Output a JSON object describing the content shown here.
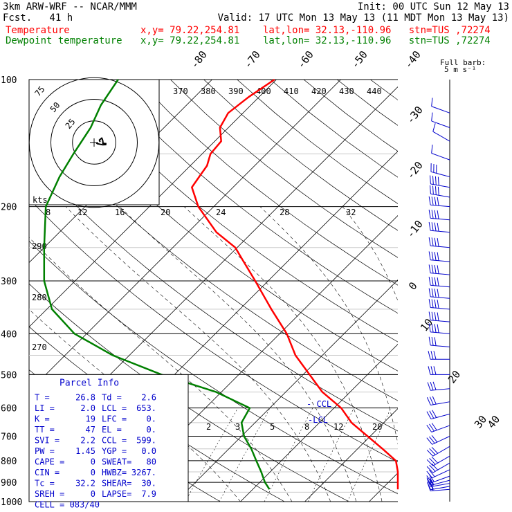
{
  "header": {
    "model": "3km ARW-WRF -- NCAR/MMM",
    "forecast": "Fcst.   41 h",
    "init": "Init: 00 UTC Sun 12 May 13",
    "valid": "Valid: 17 UTC Mon 13 May 13 (11 MDT Mon 13 May 13)",
    "temp_label": "Temperature",
    "dew_label": "Dewpoint temperature",
    "loc_info": "x,y= 79.22,254.81    lat,lon= 32.13,-110.96   stn=TUS ,72274"
  },
  "colors": {
    "temperature": "#ff0000",
    "dewpoint": "#008000",
    "parcel_panel": "#0000cc",
    "axes": "#000000"
  },
  "chart_data": {
    "type": "line",
    "title": "",
    "diagram": "Skew-T log-P",
    "ylabel": "",
    "pressure_levels": [
      100,
      200,
      300,
      400,
      500,
      600,
      700,
      800,
      900,
      1000
    ],
    "isotherm_labels": [
      "-80",
      "-70",
      "-60",
      "-50",
      "-40",
      "-30",
      "-20",
      "-10",
      "0",
      "10",
      "20",
      "30",
      "40"
    ],
    "theta_labels": [
      "370",
      "380",
      "390",
      "400",
      "410",
      "420",
      "430",
      "440"
    ],
    "mixing_ratio_labels": [
      "8",
      "12",
      "16",
      "20",
      "24",
      "28",
      "32"
    ],
    "mixing_ratio_low_labels": [
      "2",
      "3",
      "5",
      "8",
      "12",
      "20"
    ],
    "theta_e_labels": [
      "290",
      "280",
      "270"
    ],
    "lcl_label": "LCL",
    "ccl_label": "CCL",
    "series": [
      {
        "name": "Temperature",
        "points": [
          [
            935,
            30.8
          ],
          [
            900,
            26.4
          ],
          [
            850,
            21.6
          ],
          [
            800,
            17.8
          ],
          [
            750,
            13.9
          ],
          [
            700,
            9.6
          ],
          [
            650,
            5.0
          ],
          [
            600,
            1.1
          ],
          [
            550,
            -4.3
          ],
          [
            500,
            -9.0
          ],
          [
            450,
            -14.2
          ],
          [
            400,
            -18.9
          ],
          [
            350,
            -25.1
          ],
          [
            300,
            -32.0
          ],
          [
            270,
            -36.8
          ],
          [
            250,
            -40.3
          ],
          [
            230,
            -45.6
          ],
          [
            200,
            -52.4
          ],
          [
            180,
            -56.4
          ],
          [
            170,
            -56.9
          ],
          [
            160,
            -57.4
          ],
          [
            150,
            -58.7
          ],
          [
            140,
            -59.0
          ],
          [
            130,
            -61.3
          ],
          [
            120,
            -62.3
          ],
          [
            110,
            -61.6
          ],
          [
            100,
            -60.3
          ]
        ]
      },
      {
        "name": "Dewpoint temperature",
        "points": [
          [
            935,
            2.6
          ],
          [
            900,
            0.8
          ],
          [
            850,
            -1.4
          ],
          [
            800,
            -3.9
          ],
          [
            750,
            -6.5
          ],
          [
            700,
            -9.6
          ],
          [
            650,
            -12.1
          ],
          [
            600,
            -13.1
          ],
          [
            550,
            -20.8
          ],
          [
            500,
            -32.0
          ],
          [
            450,
            -42.6
          ],
          [
            400,
            -51.9
          ],
          [
            350,
            -59.2
          ],
          [
            300,
            -64.8
          ],
          [
            250,
            -70.0
          ],
          [
            200,
            -76.1
          ],
          [
            170,
            -78.6
          ],
          [
            150,
            -80.0
          ],
          [
            130,
            -81.4
          ],
          [
            115,
            -83.3
          ],
          [
            100,
            -84.6
          ]
        ]
      }
    ],
    "wind_barbs_label": "Full barb:",
    "wind_barbs_unit": "5 m s⁻¹",
    "wind_profile": [
      {
        "p": 120,
        "dir": 290,
        "spd": 5
      },
      {
        "p": 130,
        "dir": 290,
        "spd": 5
      },
      {
        "p": 140,
        "dir": 300,
        "spd": 5
      },
      {
        "p": 155,
        "dir": 290,
        "spd": 5
      },
      {
        "p": 170,
        "dir": 285,
        "spd": 15
      },
      {
        "p": 180,
        "dir": 280,
        "spd": 20
      },
      {
        "p": 190,
        "dir": 280,
        "spd": 20
      },
      {
        "p": 200,
        "dir": 275,
        "spd": 20
      },
      {
        "p": 215,
        "dir": 275,
        "spd": 20
      },
      {
        "p": 230,
        "dir": 275,
        "spd": 20
      },
      {
        "p": 250,
        "dir": 275,
        "spd": 20
      },
      {
        "p": 270,
        "dir": 275,
        "spd": 20
      },
      {
        "p": 290,
        "dir": 275,
        "spd": 20
      },
      {
        "p": 310,
        "dir": 275,
        "spd": 20
      },
      {
        "p": 330,
        "dir": 275,
        "spd": 20
      },
      {
        "p": 350,
        "dir": 275,
        "spd": 20
      },
      {
        "p": 375,
        "dir": 275,
        "spd": 20
      },
      {
        "p": 400,
        "dir": 275,
        "spd": 20
      },
      {
        "p": 430,
        "dir": 275,
        "spd": 15
      },
      {
        "p": 460,
        "dir": 270,
        "spd": 15
      },
      {
        "p": 500,
        "dir": 270,
        "spd": 15
      },
      {
        "p": 540,
        "dir": 265,
        "spd": 15
      },
      {
        "p": 580,
        "dir": 260,
        "spd": 15
      },
      {
        "p": 620,
        "dir": 255,
        "spd": 15
      },
      {
        "p": 660,
        "dir": 250,
        "spd": 15
      },
      {
        "p": 700,
        "dir": 245,
        "spd": 15
      },
      {
        "p": 740,
        "dir": 240,
        "spd": 15
      },
      {
        "p": 780,
        "dir": 240,
        "spd": 15
      },
      {
        "p": 810,
        "dir": 240,
        "spd": 15
      },
      {
        "p": 840,
        "dir": 245,
        "spd": 10
      },
      {
        "p": 870,
        "dir": 250,
        "spd": 10
      },
      {
        "p": 890,
        "dir": 255,
        "spd": 10
      },
      {
        "p": 905,
        "dir": 260,
        "spd": 10
      },
      {
        "p": 920,
        "dir": 260,
        "spd": 10
      },
      {
        "p": 935,
        "dir": 265,
        "spd": 10
      }
    ],
    "hodograph": {
      "unit_label": "kts",
      "ring_labels": [
        "25",
        "50",
        "75"
      ]
    },
    "parcel_info": {
      "title": "Parcel Info",
      "rows": [
        [
          "T  =",
          "26.8",
          "Td =",
          "2.6"
        ],
        [
          "LI =",
          "2.0",
          "LCL =",
          "653."
        ],
        [
          "K  =",
          "19",
          "LFC =",
          "0."
        ],
        [
          "TT =",
          "47",
          "EL  =",
          "0."
        ],
        [
          "SVI =",
          "2.2",
          "CCL =",
          "599."
        ],
        [
          "PW =",
          "1.45",
          "YGP =",
          "0.0"
        ],
        [
          "CAPE =",
          "0",
          "SWEAT=",
          "80"
        ],
        [
          "CIN =",
          "0",
          "HWBZ=",
          "3267."
        ],
        [
          "Tc =",
          "32.2",
          "SHEAR=",
          "30."
        ],
        [
          "SREH =",
          "0",
          "LAPSE=",
          "7.9"
        ]
      ],
      "cell": "CELL = 083/40"
    }
  }
}
